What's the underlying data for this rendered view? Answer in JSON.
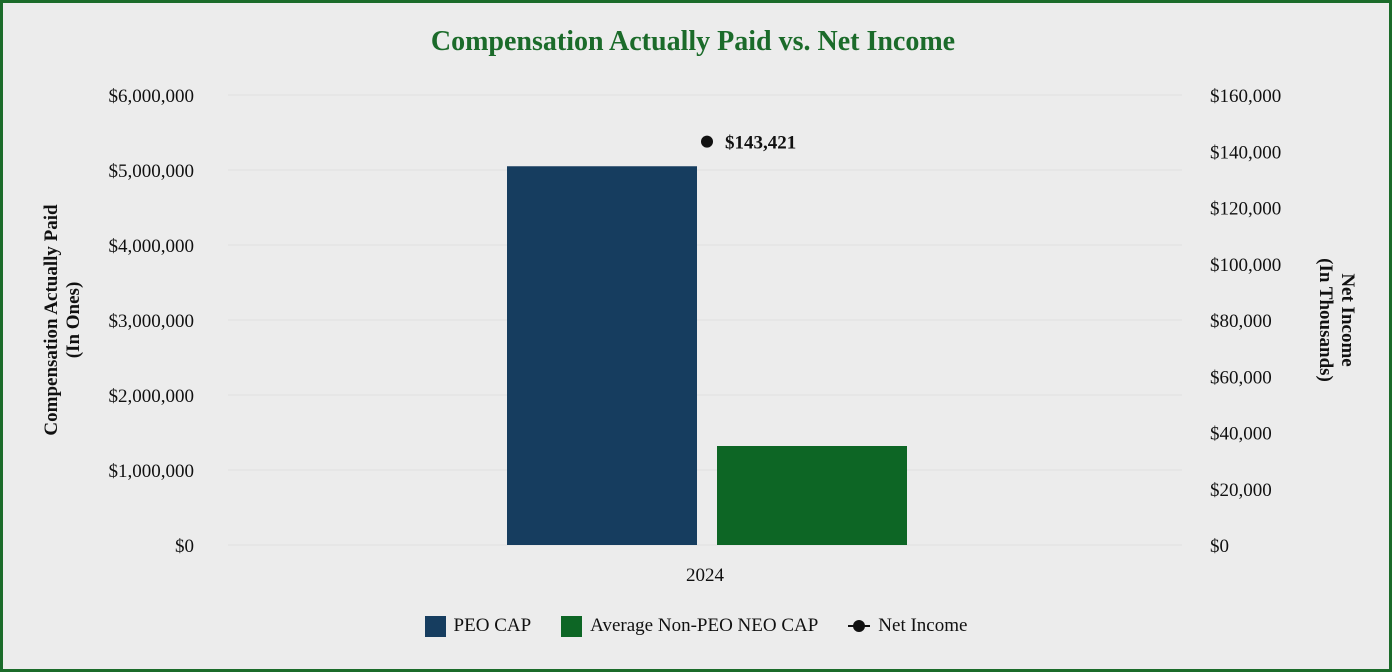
{
  "chart_data": {
    "type": "bar",
    "title": "Compensation Actually Paid vs. Net Income",
    "categories": [
      "2024"
    ],
    "series": [
      {
        "name": "PEO CAP",
        "type": "bar",
        "axis": "left",
        "color": "#163d5f",
        "values": [
          5050000
        ]
      },
      {
        "name": "Average Non-PEO NEO CAP",
        "type": "bar",
        "axis": "left",
        "color": "#0d6625",
        "values": [
          1320000
        ]
      },
      {
        "name": "Net Income",
        "type": "line",
        "axis": "right",
        "color": "#111111",
        "values": [
          143421
        ],
        "labels": [
          "$143,421"
        ]
      }
    ],
    "ylabel_left": [
      "Compensation Actually Paid",
      "(In Ones)"
    ],
    "ylabel_right": [
      "Net Income",
      "(In Thousands)"
    ],
    "ylim_left": [
      0,
      6000000
    ],
    "ylim_right": [
      0,
      160000
    ],
    "yticks_left": [
      "$0",
      "$1,000,000",
      "$2,000,000",
      "$3,000,000",
      "$4,000,000",
      "$5,000,000",
      "$6,000,000"
    ],
    "yticks_right": [
      "$0",
      "$20,000",
      "$40,000",
      "$60,000",
      "$80,000",
      "$100,000",
      "$120,000",
      "$140,000",
      "$160,000"
    ],
    "grid": true,
    "legend_position": "bottom"
  }
}
